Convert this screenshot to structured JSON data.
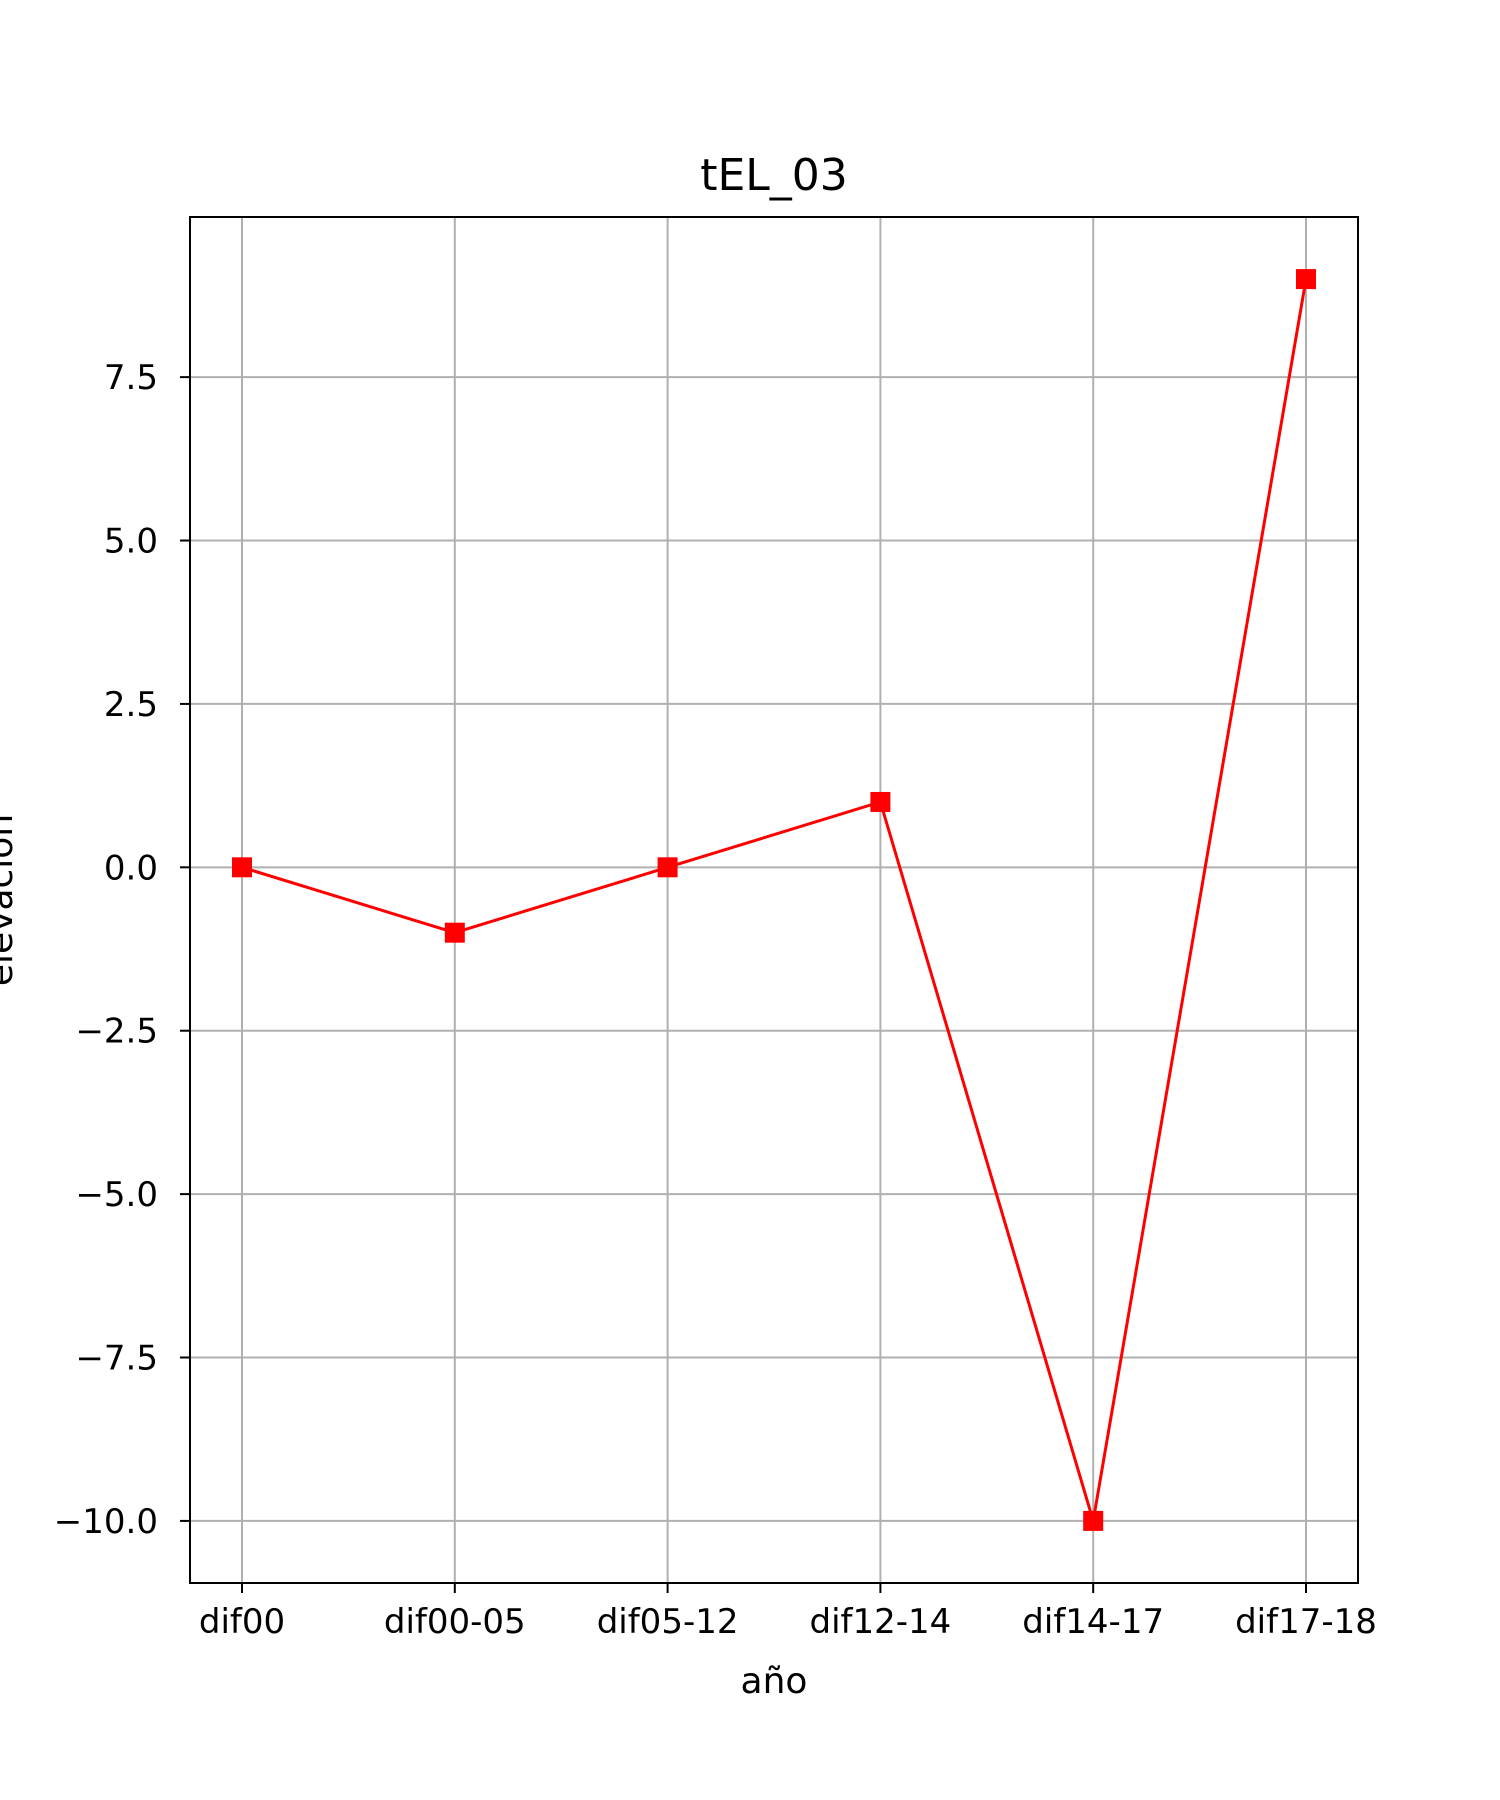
{
  "chart_data": {
    "type": "line",
    "title": "tEL_03",
    "xlabel": "año",
    "ylabel": "elevación",
    "categories": [
      "dif00",
      "dif00-05",
      "dif05-12",
      "dif12-14",
      "dif14-17",
      "dif17-18"
    ],
    "series": [
      {
        "values": [
          0,
          -1,
          0,
          1,
          -10,
          9
        ],
        "color": "#ff0000",
        "marker": "square"
      }
    ],
    "ylim": [
      -10.95,
      9.95
    ],
    "yticks": [
      -10.0,
      -7.5,
      -5.0,
      -2.5,
      0.0,
      2.5,
      5.0,
      7.5
    ],
    "ytick_labels": [
      "−10.0",
      "−7.5",
      "−5.0",
      "−2.5",
      "0.0",
      "2.5",
      "5.0",
      "7.5"
    ],
    "grid": true,
    "grid_color": "#b0b0b0",
    "axes_color": "#000000"
  }
}
